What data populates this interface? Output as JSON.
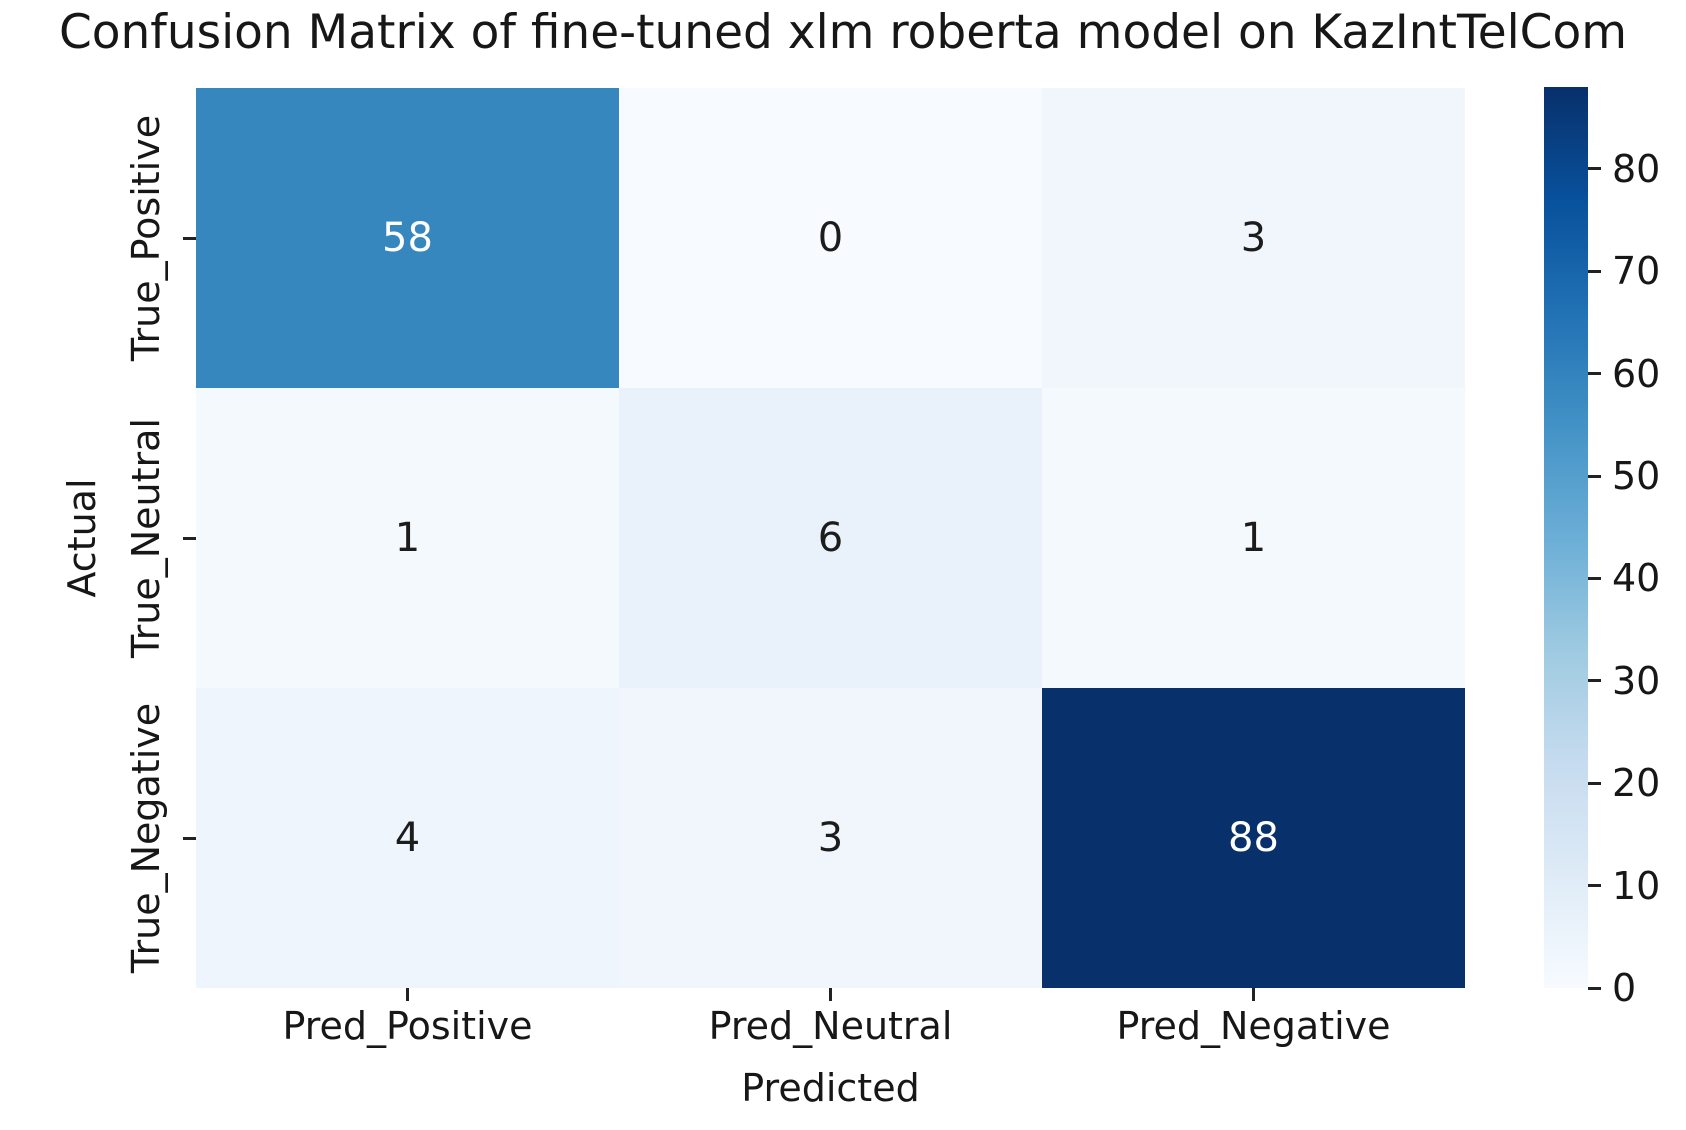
{
  "chart_data": {
    "type": "heatmap",
    "title": "Confusion Matrix of fine-tuned xlm roberta model on KazIntTelCom",
    "xlabel": "Predicted",
    "ylabel": "Actual",
    "x_categories": [
      "Pred_Positive",
      "Pred_Neutral",
      "Pred_Negative"
    ],
    "y_categories": [
      "True_Positive",
      "True_Neutral",
      "True_Negative"
    ],
    "values": [
      [
        58,
        0,
        3
      ],
      [
        1,
        6,
        1
      ],
      [
        4,
        3,
        88
      ]
    ],
    "colormap": "Blues",
    "vmin": 0,
    "vmax": 88,
    "colorbar_ticks": [
      0,
      10,
      20,
      30,
      40,
      50,
      60,
      70,
      80
    ],
    "colorbar_position": "right",
    "cell_colors": [
      [
        "#3787bf",
        "#f7fbff",
        "#f0f6fc"
      ],
      [
        "#f4f9fe",
        "#e9f1fa",
        "#f4f9fe"
      ],
      [
        "#eef5fc",
        "#f0f6fc",
        "#08306b"
      ]
    ],
    "cell_text_colors": [
      [
        "#ffffff",
        "#1c1c1c",
        "#1c1c1c"
      ],
      [
        "#1c1c1c",
        "#1c1c1c",
        "#1c1c1c"
      ],
      [
        "#1c1c1c",
        "#1c1c1c",
        "#ffffff"
      ]
    ],
    "colormap_stops": [
      "#f7fbff",
      "#deebf7",
      "#c6dbef",
      "#9ecae1",
      "#6baed6",
      "#4292c6",
      "#2171b5",
      "#08519c",
      "#08306b"
    ]
  }
}
